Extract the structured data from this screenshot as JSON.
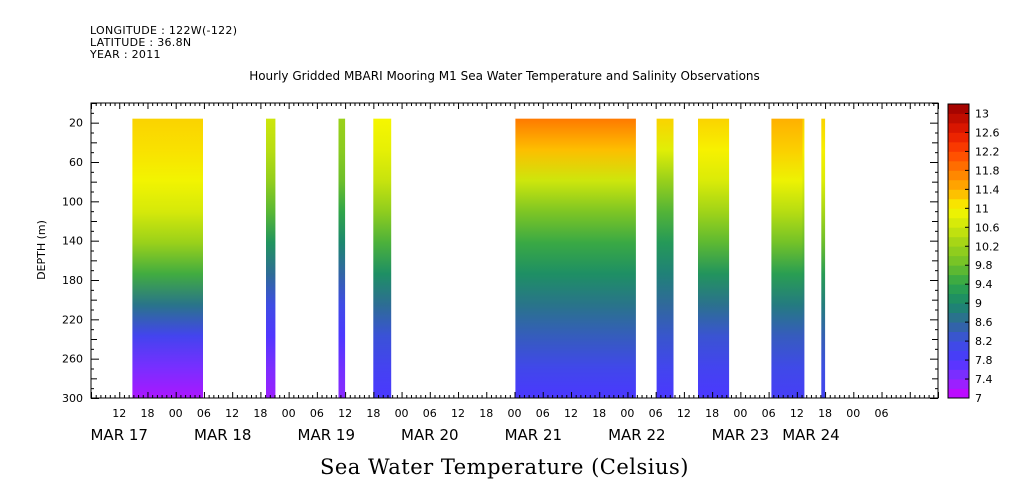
{
  "header": {
    "longitude": "LONGITUDE : 122W(-122)",
    "latitude": "LATITUDE : 36.8N",
    "year": "YEAR : 2011"
  },
  "chart_data": {
    "type": "heatmap",
    "title": "Hourly Gridded MBARI Mooring M1 Sea Water Temperature and Salinity Observations",
    "variable_label": "Sea Water Temperature (Celsius)",
    "ylabel": "DEPTH (m)",
    "ylim": [
      300,
      0
    ],
    "y_ticks": [
      20,
      60,
      100,
      140,
      180,
      220,
      260,
      300
    ],
    "x_hours": [
      6,
      186
    ],
    "x_hour_tick_labels": [
      "12",
      "18",
      "00",
      "06",
      "12",
      "18",
      "00",
      "06",
      "12",
      "18",
      "00",
      "06",
      "12",
      "18",
      "00",
      "06",
      "12",
      "18",
      "00",
      "06",
      "12",
      "18",
      "00",
      "06",
      "12",
      "18",
      "00",
      "06"
    ],
    "x_date_labels": [
      {
        "label": "MAR 17",
        "hour": 12
      },
      {
        "label": "MAR 18",
        "hour": 34
      },
      {
        "label": "MAR 19",
        "hour": 56
      },
      {
        "label": "MAR 20",
        "hour": 78
      },
      {
        "label": "MAR 21",
        "hour": 100
      },
      {
        "label": "MAR 22",
        "hour": 122
      },
      {
        "label": "MAR 23",
        "hour": 144
      },
      {
        "label": "MAR 24",
        "hour": 159
      }
    ],
    "colorbar": {
      "min": 7,
      "max": 13.2,
      "step": 0.2,
      "tick_labels": [
        "7",
        "7.4",
        "7.8",
        "8.2",
        "8.6",
        "9",
        "9.4",
        "9.8",
        "10.2",
        "10.6",
        "11",
        "11.4",
        "11.8",
        "12.2",
        "12.6",
        "13"
      ]
    },
    "data_segments": [
      {
        "hour_start": 14.8,
        "hour_end": 29.8,
        "surface_temp": 11.2,
        "bottom_temp": 7.2,
        "profile": "warm"
      },
      {
        "hour_start": 43.2,
        "hour_end": 45.2,
        "surface_temp": 10.6,
        "bottom_temp": 7.3,
        "profile": "mid"
      },
      {
        "hour_start": 58.6,
        "hour_end": 60.0,
        "surface_temp": 10.2,
        "bottom_temp": 7.4,
        "profile": "mid"
      },
      {
        "hour_start": 66.0,
        "hour_end": 69.8,
        "surface_temp": 11.0,
        "bottom_temp": 7.8,
        "profile": "mid"
      },
      {
        "hour_start": 96.2,
        "hour_end": 121.8,
        "surface_temp": 11.8,
        "bottom_temp": 7.8,
        "profile": "cool"
      },
      {
        "hour_start": 126.2,
        "hour_end": 129.8,
        "surface_temp": 11.2,
        "bottom_temp": 7.8,
        "profile": "cool"
      },
      {
        "hour_start": 135.0,
        "hour_end": 141.6,
        "surface_temp": 11.2,
        "bottom_temp": 7.8,
        "profile": "mid"
      },
      {
        "hour_start": 150.6,
        "hour_end": 157.2,
        "surface_temp": 11.4,
        "bottom_temp": 7.9,
        "profile": "mid"
      },
      {
        "hour_start": 157.2,
        "hour_end": 157.6,
        "surface_temp": 11.2,
        "bottom_temp": 7.9,
        "profile": "mid"
      },
      {
        "hour_start": 161.2,
        "hour_end": 162.0,
        "surface_temp": 11.2,
        "bottom_temp": 8.0,
        "profile": "mid"
      }
    ]
  }
}
